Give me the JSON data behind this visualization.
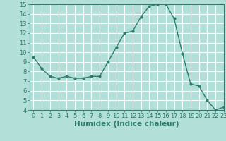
{
  "x": [
    0,
    1,
    2,
    3,
    4,
    5,
    6,
    7,
    8,
    9,
    10,
    11,
    12,
    13,
    14,
    15,
    16,
    17,
    18,
    19,
    20,
    21,
    22,
    23
  ],
  "y": [
    9.5,
    8.3,
    7.5,
    7.3,
    7.5,
    7.3,
    7.3,
    7.5,
    7.5,
    9.0,
    10.5,
    12.0,
    12.2,
    13.7,
    14.8,
    15.0,
    15.0,
    13.5,
    9.9,
    6.7,
    6.5,
    5.0,
    4.0,
    4.3
  ],
  "xlabel": "Humidex (Indice chaleur)",
  "ylim": [
    4,
    15
  ],
  "xlim": [
    -0.5,
    23
  ],
  "yticks": [
    4,
    5,
    6,
    7,
    8,
    9,
    10,
    11,
    12,
    13,
    14,
    15
  ],
  "xticks": [
    0,
    1,
    2,
    3,
    4,
    5,
    6,
    7,
    8,
    9,
    10,
    11,
    12,
    13,
    14,
    15,
    16,
    17,
    18,
    19,
    20,
    21,
    22,
    23
  ],
  "line_color": "#2e7d6e",
  "marker_color": "#2e7d6e",
  "bg_color": "#b2dfd8",
  "grid_color": "#ffffff",
  "text_color": "#2e7d6e",
  "xlabel_fontsize": 7.5,
  "tick_fontsize": 6.0
}
